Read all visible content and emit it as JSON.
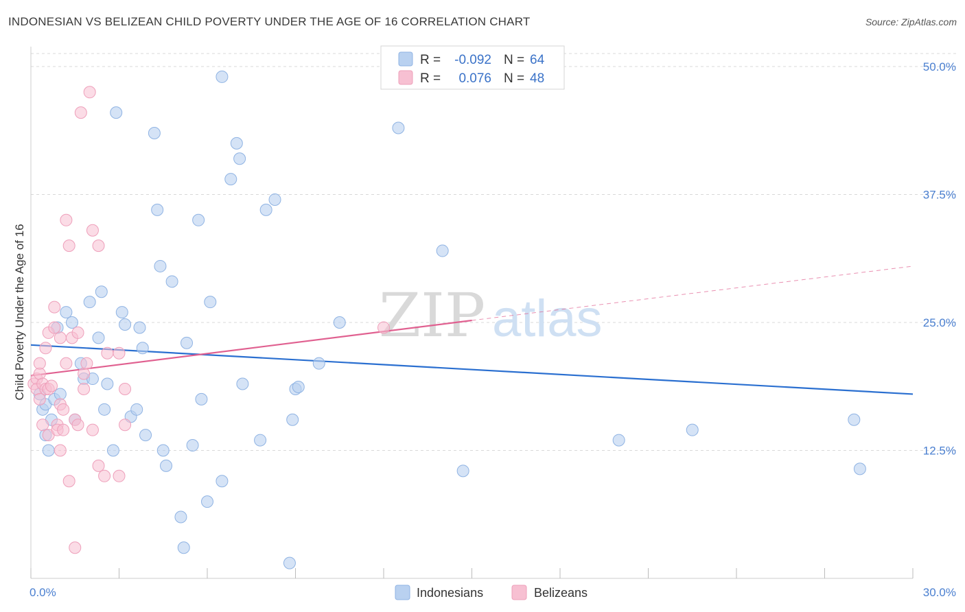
{
  "title": "INDONESIAN VS BELIZEAN CHILD POVERTY UNDER THE AGE OF 16 CORRELATION CHART",
  "source": "Source: ZipAtlas.com",
  "watermark": {
    "zip": "ZIP",
    "atlas": "atlas"
  },
  "colors": {
    "indonesians_fill": "#b9d1f0",
    "indonesians_stroke": "#8fb3e3",
    "indonesians_line": "#2a6fd0",
    "belizeans_fill": "#f7c0d2",
    "belizeans_stroke": "#ee9fba",
    "belizeans_line": "#e06090",
    "tick_label": "#4a7fd0",
    "grid": "#d8d8d8"
  },
  "legend": {
    "rows": [
      {
        "r_label": "R =",
        "r_value": "-0.092",
        "n_label": "N =",
        "n_value": "64"
      },
      {
        "r_label": "R =",
        "r_value": "0.076",
        "n_label": "N =",
        "n_value": "48"
      }
    ]
  },
  "bottom_legend": [
    "Indonesians",
    "Belizeans"
  ],
  "chart_data": {
    "type": "scatter",
    "title": "INDONESIAN VS BELIZEAN CHILD POVERTY UNDER THE AGE OF 16 CORRELATION CHART",
    "xlabel": "",
    "ylabel": "Child Poverty Under the Age of 16",
    "xlim": [
      0,
      30
    ],
    "ylim": [
      0,
      50
    ],
    "x_tick_labels": [
      "0.0%",
      "30.0%"
    ],
    "y_ticks": [
      12.5,
      25.0,
      37.5,
      50.0
    ],
    "y_tick_labels": [
      "12.5%",
      "25.0%",
      "37.5%",
      "50.0%"
    ],
    "grid": true,
    "legend_position": "top-center",
    "series": [
      {
        "name": "Indonesians",
        "r": -0.092,
        "n": 64,
        "trend": {
          "x": [
            0,
            30
          ],
          "y": [
            22.8,
            18.0
          ]
        },
        "points": [
          [
            0.3,
            18.0
          ],
          [
            0.4,
            16.5
          ],
          [
            0.5,
            17.0
          ],
          [
            0.5,
            14.0
          ],
          [
            0.6,
            12.5
          ],
          [
            0.7,
            15.5
          ],
          [
            0.8,
            17.5
          ],
          [
            0.9,
            24.5
          ],
          [
            1.0,
            18.0
          ],
          [
            1.2,
            26.0
          ],
          [
            1.4,
            25.0
          ],
          [
            1.5,
            15.5
          ],
          [
            1.7,
            21.0
          ],
          [
            1.8,
            19.5
          ],
          [
            2.0,
            27.0
          ],
          [
            2.1,
            19.5
          ],
          [
            2.3,
            23.5
          ],
          [
            2.4,
            28.0
          ],
          [
            2.5,
            16.5
          ],
          [
            2.6,
            19.0
          ],
          [
            2.8,
            12.5
          ],
          [
            2.9,
            45.5
          ],
          [
            3.1,
            26.0
          ],
          [
            3.2,
            24.8
          ],
          [
            3.4,
            15.8
          ],
          [
            3.6,
            16.5
          ],
          [
            3.7,
            24.5
          ],
          [
            3.8,
            22.5
          ],
          [
            3.9,
            14.0
          ],
          [
            4.2,
            43.5
          ],
          [
            4.3,
            36.0
          ],
          [
            4.4,
            30.5
          ],
          [
            4.5,
            12.5
          ],
          [
            4.6,
            11.0
          ],
          [
            4.8,
            29.0
          ],
          [
            5.1,
            6.0
          ],
          [
            5.2,
            3.0
          ],
          [
            5.3,
            23.0
          ],
          [
            5.5,
            13.0
          ],
          [
            5.7,
            35.0
          ],
          [
            5.8,
            17.5
          ],
          [
            6.0,
            7.5
          ],
          [
            6.1,
            27.0
          ],
          [
            6.5,
            9.5
          ],
          [
            6.5,
            49.0
          ],
          [
            6.8,
            39.0
          ],
          [
            7.0,
            42.5
          ],
          [
            7.1,
            41.0
          ],
          [
            7.2,
            19.0
          ],
          [
            7.8,
            13.5
          ],
          [
            8.0,
            36.0
          ],
          [
            8.3,
            37.0
          ],
          [
            8.8,
            1.5
          ],
          [
            8.9,
            15.5
          ],
          [
            9.0,
            18.5
          ],
          [
            9.1,
            18.7
          ],
          [
            9.8,
            21.0
          ],
          [
            10.5,
            25.0
          ],
          [
            12.5,
            44.0
          ],
          [
            14.0,
            32.0
          ],
          [
            14.7,
            10.5
          ],
          [
            20.0,
            13.5
          ],
          [
            22.5,
            14.5
          ],
          [
            28.2,
            10.7
          ]
        ],
        "points_extra": [
          [
            28.0,
            15.5
          ]
        ]
      },
      {
        "name": "Belizeans",
        "r": 0.076,
        "n": 48,
        "trend": {
          "x": [
            0,
            15
          ],
          "y": [
            19.8,
            25.2
          ]
        },
        "trend_extension": {
          "x": [
            15,
            30
          ],
          "y": [
            25.2,
            30.5
          ]
        },
        "points": [
          [
            0.1,
            19.0
          ],
          [
            0.2,
            19.5
          ],
          [
            0.2,
            18.5
          ],
          [
            0.3,
            20.0
          ],
          [
            0.3,
            21.0
          ],
          [
            0.3,
            17.5
          ],
          [
            0.4,
            19.0
          ],
          [
            0.4,
            15.0
          ],
          [
            0.5,
            18.5
          ],
          [
            0.5,
            22.5
          ],
          [
            0.6,
            18.5
          ],
          [
            0.6,
            24.0
          ],
          [
            0.6,
            14.0
          ],
          [
            0.7,
            18.8
          ],
          [
            0.8,
            24.5
          ],
          [
            0.8,
            26.5
          ],
          [
            0.9,
            15.0
          ],
          [
            0.9,
            14.5
          ],
          [
            1.0,
            23.5
          ],
          [
            1.0,
            17.0
          ],
          [
            1.0,
            12.5
          ],
          [
            1.1,
            16.5
          ],
          [
            1.1,
            14.5
          ],
          [
            1.2,
            21.0
          ],
          [
            1.2,
            35.0
          ],
          [
            1.3,
            32.5
          ],
          [
            1.3,
            9.5
          ],
          [
            1.4,
            23.5
          ],
          [
            1.5,
            15.5
          ],
          [
            1.5,
            3.0
          ],
          [
            1.6,
            15.0
          ],
          [
            1.6,
            24.0
          ],
          [
            1.7,
            45.5
          ],
          [
            1.8,
            20.0
          ],
          [
            1.8,
            18.5
          ],
          [
            1.9,
            21.0
          ],
          [
            2.0,
            47.5
          ],
          [
            2.1,
            34.0
          ],
          [
            2.1,
            14.5
          ],
          [
            2.3,
            32.5
          ],
          [
            2.3,
            11.0
          ],
          [
            2.5,
            10.0
          ],
          [
            2.6,
            22.0
          ],
          [
            3.0,
            10.0
          ],
          [
            3.0,
            22.0
          ],
          [
            3.2,
            18.5
          ],
          [
            3.2,
            15.0
          ],
          [
            12.0,
            24.5
          ]
        ]
      }
    ]
  }
}
